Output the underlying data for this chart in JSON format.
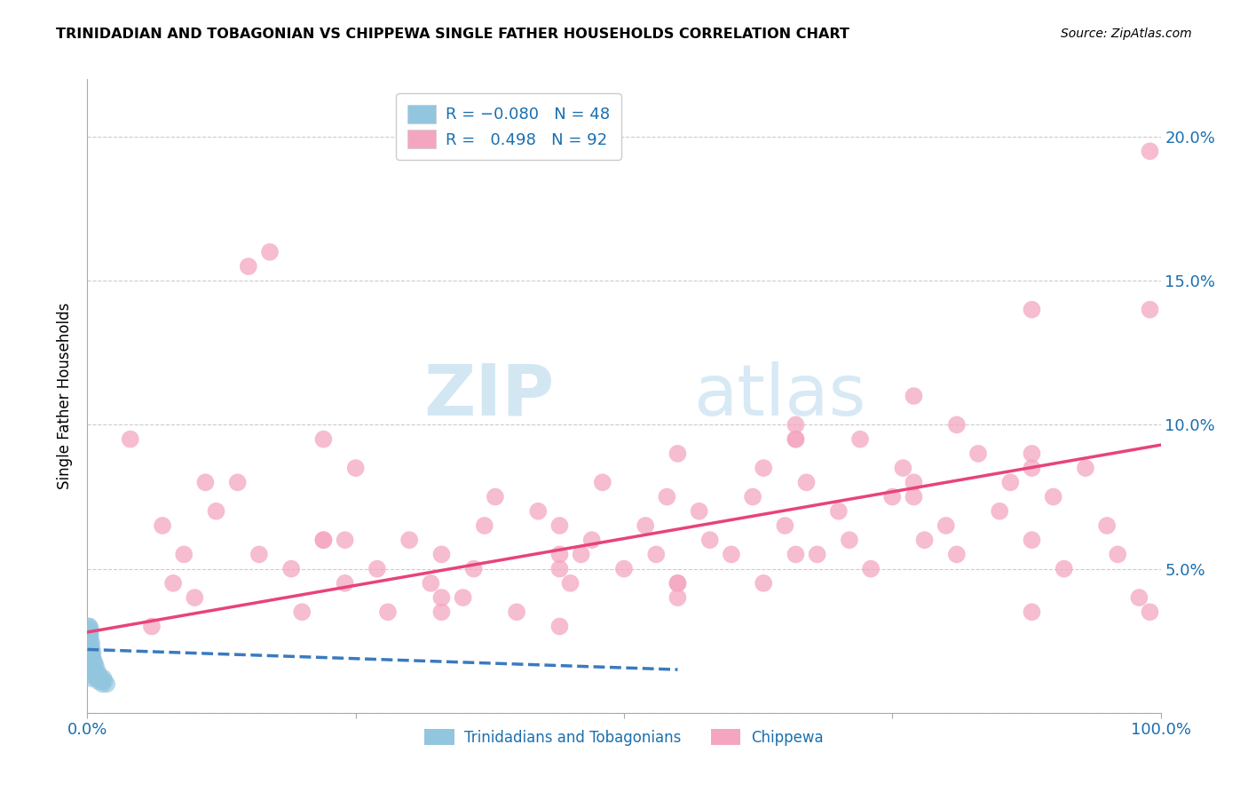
{
  "title": "TRINIDADIAN AND TOBAGONIAN VS CHIPPEWA SINGLE FATHER HOUSEHOLDS CORRELATION CHART",
  "source": "Source: ZipAtlas.com",
  "ylabel": "Single Father Households",
  "xlim": [
    0,
    1.0
  ],
  "ylim": [
    0,
    0.22
  ],
  "xticks": [
    0.0,
    0.25,
    0.5,
    0.75,
    1.0
  ],
  "xtick_labels": [
    "0.0%",
    "",
    "",
    "",
    "100.0%"
  ],
  "yticks": [
    0.0,
    0.05,
    0.1,
    0.15,
    0.2
  ],
  "ytick_labels": [
    "",
    "5.0%",
    "10.0%",
    "15.0%",
    "20.0%"
  ],
  "blue_color": "#92c5de",
  "pink_color": "#f4a6c0",
  "blue_line_color": "#3a7abf",
  "pink_line_color": "#e8437a",
  "axis_color": "#1a6faf",
  "background_color": "#ffffff",
  "trinidadian_x": [
    0.001,
    0.001,
    0.001,
    0.001,
    0.001,
    0.002,
    0.002,
    0.002,
    0.002,
    0.002,
    0.002,
    0.002,
    0.002,
    0.003,
    0.003,
    0.003,
    0.003,
    0.003,
    0.003,
    0.003,
    0.003,
    0.003,
    0.004,
    0.004,
    0.004,
    0.004,
    0.004,
    0.004,
    0.005,
    0.005,
    0.005,
    0.005,
    0.006,
    0.006,
    0.007,
    0.007,
    0.008,
    0.008,
    0.009,
    0.01,
    0.01,
    0.011,
    0.012,
    0.013,
    0.014,
    0.015,
    0.016,
    0.018
  ],
  "trinidadian_y": [
    0.02,
    0.022,
    0.025,
    0.027,
    0.03,
    0.015,
    0.018,
    0.02,
    0.022,
    0.024,
    0.026,
    0.028,
    0.03,
    0.012,
    0.015,
    0.017,
    0.019,
    0.021,
    0.023,
    0.025,
    0.027,
    0.029,
    0.013,
    0.016,
    0.018,
    0.02,
    0.022,
    0.024,
    0.014,
    0.016,
    0.019,
    0.021,
    0.015,
    0.018,
    0.014,
    0.017,
    0.013,
    0.016,
    0.012,
    0.011,
    0.014,
    0.013,
    0.012,
    0.011,
    0.01,
    0.012,
    0.011,
    0.01
  ],
  "chippewa_x": [
    0.04,
    0.06,
    0.07,
    0.09,
    0.1,
    0.12,
    0.14,
    0.15,
    0.17,
    0.19,
    0.2,
    0.22,
    0.24,
    0.25,
    0.27,
    0.28,
    0.3,
    0.32,
    0.33,
    0.35,
    0.37,
    0.38,
    0.4,
    0.42,
    0.44,
    0.45,
    0.47,
    0.48,
    0.5,
    0.52,
    0.53,
    0.55,
    0.57,
    0.58,
    0.6,
    0.62,
    0.63,
    0.65,
    0.67,
    0.68,
    0.7,
    0.71,
    0.73,
    0.75,
    0.76,
    0.78,
    0.8,
    0.81,
    0.83,
    0.85,
    0.86,
    0.88,
    0.9,
    0.91,
    0.93,
    0.95,
    0.96,
    0.98,
    0.46,
    0.54,
    0.63,
    0.72,
    0.81,
    0.24,
    0.36,
    0.16,
    0.08,
    0.55,
    0.66,
    0.77,
    0.88,
    0.99,
    0.33,
    0.44,
    0.55,
    0.66,
    0.77,
    0.88,
    0.99,
    0.22,
    0.44,
    0.66,
    0.88,
    0.55,
    0.77,
    0.33,
    0.11,
    0.99,
    0.44,
    0.66,
    0.22,
    0.88
  ],
  "chippewa_y": [
    0.095,
    0.03,
    0.065,
    0.055,
    0.04,
    0.07,
    0.08,
    0.155,
    0.16,
    0.05,
    0.035,
    0.06,
    0.045,
    0.085,
    0.05,
    0.035,
    0.06,
    0.045,
    0.055,
    0.04,
    0.065,
    0.075,
    0.035,
    0.07,
    0.055,
    0.045,
    0.06,
    0.08,
    0.05,
    0.065,
    0.055,
    0.04,
    0.07,
    0.06,
    0.055,
    0.075,
    0.045,
    0.065,
    0.08,
    0.055,
    0.07,
    0.06,
    0.05,
    0.075,
    0.085,
    0.06,
    0.065,
    0.055,
    0.09,
    0.07,
    0.08,
    0.06,
    0.075,
    0.05,
    0.085,
    0.065,
    0.055,
    0.04,
    0.055,
    0.075,
    0.085,
    0.095,
    0.1,
    0.06,
    0.05,
    0.055,
    0.045,
    0.09,
    0.095,
    0.08,
    0.14,
    0.195,
    0.035,
    0.065,
    0.045,
    0.095,
    0.075,
    0.085,
    0.035,
    0.095,
    0.05,
    0.1,
    0.09,
    0.045,
    0.11,
    0.04,
    0.08,
    0.14,
    0.03,
    0.055,
    0.06,
    0.035
  ],
  "trini_trendline_x": [
    0.0,
    0.55
  ],
  "trini_trendline_y": [
    0.022,
    0.015
  ],
  "chipp_trendline_x": [
    0.0,
    1.0
  ],
  "chipp_trendline_y": [
    0.028,
    0.093
  ]
}
